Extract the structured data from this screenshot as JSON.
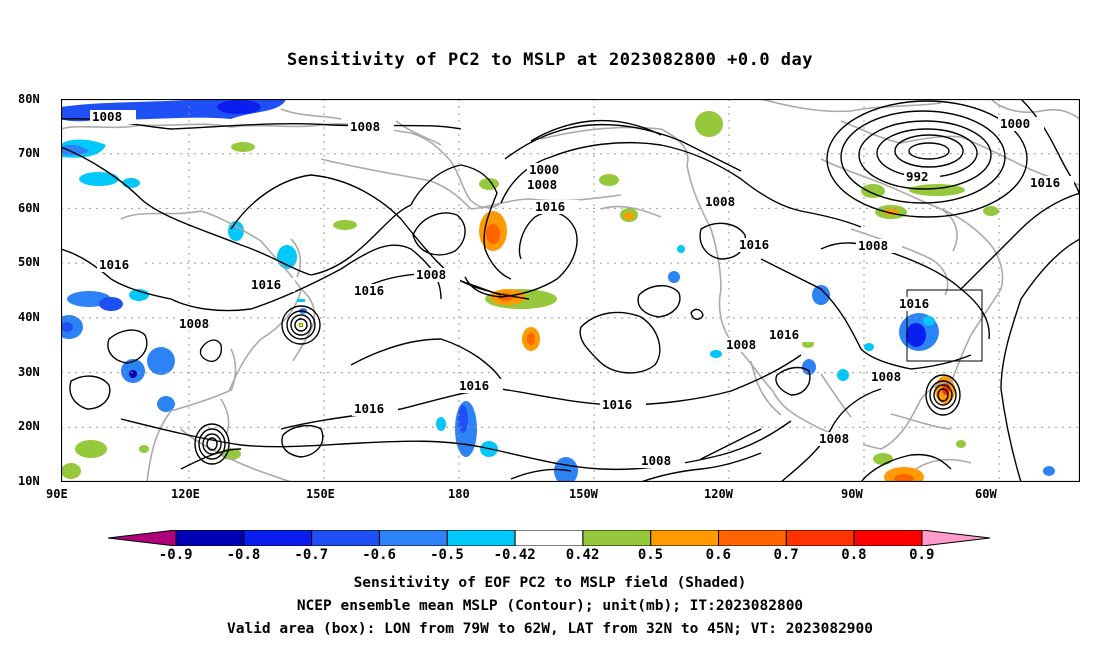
{
  "title": "Sensitivity of PC2 to MSLP at 2023082800 +0.0 day",
  "lat_labels": [
    "80N",
    "70N",
    "60N",
    "50N",
    "40N",
    "30N",
    "20N",
    "10N"
  ],
  "lon_labels": [
    "90E",
    "120E",
    "150E",
    "180",
    "150W",
    "120W",
    "90W",
    "60W"
  ],
  "contour_labels": [
    {
      "text": "1008"
    },
    {
      "text": "1008"
    },
    {
      "text": "1000"
    },
    {
      "text": "1008"
    },
    {
      "text": "1016"
    },
    {
      "text": "1008"
    },
    {
      "text": "1000"
    },
    {
      "text": "992"
    },
    {
      "text": "1016"
    },
    {
      "text": "1016"
    },
    {
      "text": "1008"
    },
    {
      "text": "1016"
    },
    {
      "text": "1016"
    },
    {
      "text": "1008"
    },
    {
      "text": "1008"
    },
    {
      "text": "1016"
    },
    {
      "text": "1016"
    },
    {
      "text": "1016"
    },
    {
      "text": "1016"
    },
    {
      "text": "1008"
    },
    {
      "text": "1016"
    },
    {
      "text": "1008"
    },
    {
      "text": "1008"
    },
    {
      "text": "1016"
    }
  ],
  "colorbar": {
    "labels": [
      "-0.9",
      "-0.8",
      "-0.7",
      "-0.6",
      "-0.5",
      "-0.42",
      "0.42",
      "0.5",
      "0.6",
      "0.7",
      "0.8",
      "0.9"
    ],
    "colors": [
      "#b0007a",
      "#0000b4",
      "#0a1ef0",
      "#1e50f5",
      "#2d82f5",
      "#00c8fa",
      "#ffffff",
      "#96c83c",
      "#ff9b00",
      "#ff6400",
      "#ff3200",
      "#ff0000",
      "#ff9ccc"
    ]
  },
  "captions": {
    "line1": "Sensitivity of EOF PC2 to MSLP field (Shaded)",
    "line2": "NCEP ensemble mean MSLP (Contour); unit(mb); IT:2023082800",
    "line3": "Valid area (box): LON from 79W to 62W, LAT from 32N to 45N; VT: 2023082900"
  },
  "valid_box": {
    "lon_west": -79,
    "lon_east": -62,
    "lat_south": 32,
    "lat_north": 45
  },
  "colors": {
    "contour": "#000000",
    "coast": "#aaaaaa",
    "grid": "#999999"
  }
}
